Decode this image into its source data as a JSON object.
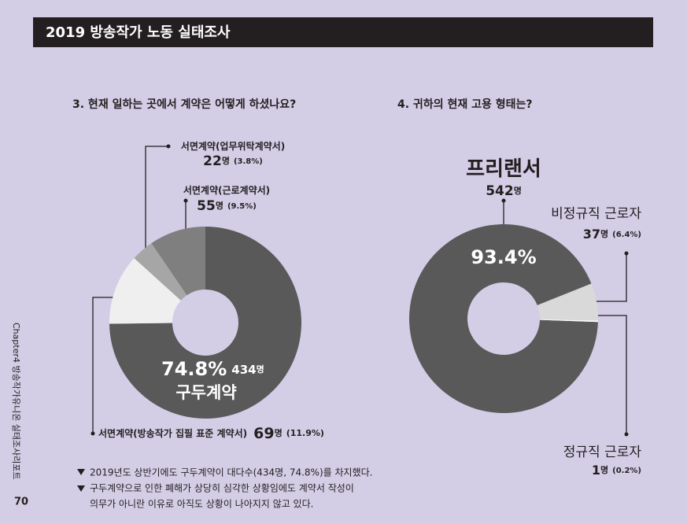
{
  "header": {
    "title": "2019 방송작가 노동 실태조사"
  },
  "side_label": "Chapter4  방송작가유니온 실태조사리포트",
  "page_number": 70,
  "notes": [
    "2019년도 상반기에도 구두계약이 대다수(434명, 74.8%)를 차지했다.",
    "구두계약으로 인한 폐해가 상당히 심각한 상황임에도 계약서 작성이",
    "의무가 아니란 이유로 아직도 상황이 나아지지 않고 있다."
  ],
  "chart_data": [
    {
      "type": "pie",
      "donut": true,
      "title": "3. 현재 일하는 곳에서 계약은 어떻게 하셨나요?",
      "categories": [
        "구두계약",
        "서면계약(방송작가 집필 표준 계약서)",
        "서면계약(업무위탁계약서)",
        "서면계약(근로계약서)"
      ],
      "values": [
        74.8,
        11.9,
        3.8,
        9.5
      ],
      "value_labels": [
        "74.8%",
        "(11.9%)",
        "(3.8%)",
        "(9.5%)"
      ],
      "counts": [
        434,
        69,
        22,
        55
      ],
      "count_unit": "명",
      "colors": [
        "#595959",
        "#efefef",
        "#a6a6a6",
        "#7f7f7f"
      ]
    },
    {
      "type": "pie",
      "donut": true,
      "title": "4. 귀하의 현재 고용 형태는?",
      "categories": [
        "프리랜서",
        "비정규직 근로자",
        "정규직 근로자"
      ],
      "values": [
        93.4,
        6.4,
        0.2
      ],
      "value_labels": [
        "93.4%",
        "(6.4%)",
        "(0.2%)"
      ],
      "counts": [
        542,
        37,
        1
      ],
      "count_unit": "명",
      "colors": [
        "#595959",
        "#d9d9d9",
        "#ffffff"
      ]
    }
  ]
}
